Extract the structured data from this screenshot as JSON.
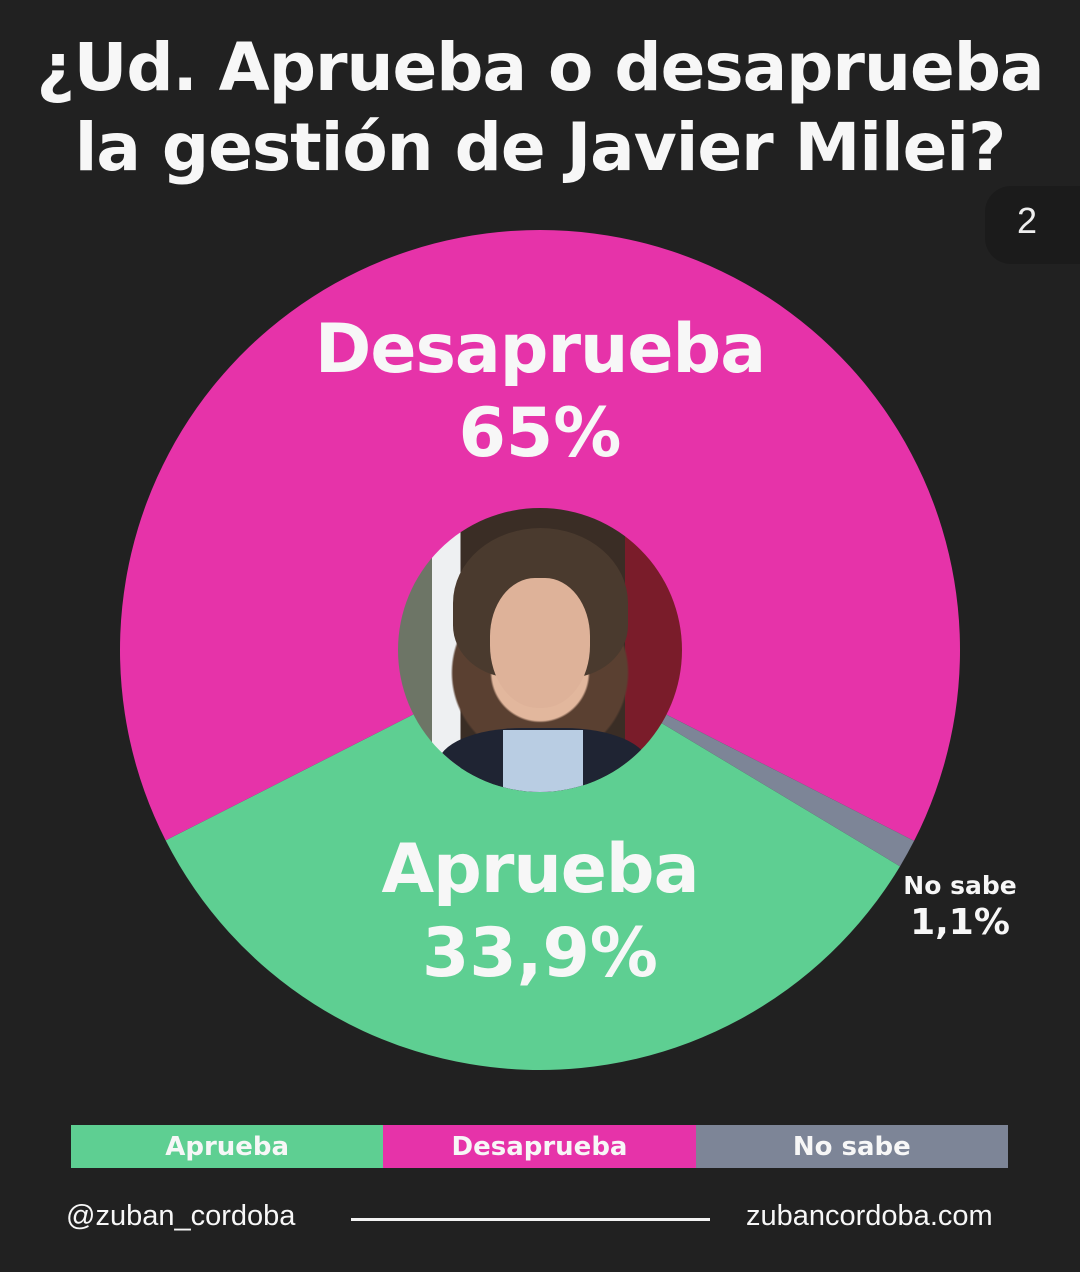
{
  "title": {
    "line1": "¿Ud. Aprueba o desaprueba",
    "line2": "la gestión de Javier Milei?"
  },
  "page_indicator": "2",
  "colors": {
    "background": "#212121",
    "aprueba": "#5ecf92",
    "desaprueba": "#e633a9",
    "no_sabe": "#7d8597",
    "text": "#f7f7f7"
  },
  "slices": [
    {
      "key": "aprueba",
      "name": "Aprueba",
      "pct_label": "33,9%",
      "value": 33.9
    },
    {
      "key": "no_sabe",
      "name": "No sabe",
      "pct_label": "1,1%",
      "value": 1.1
    },
    {
      "key": "desaprueba",
      "name": "Desaprueba",
      "pct_label": "65%",
      "value": 65
    }
  ],
  "legend": [
    {
      "label": "Aprueba",
      "color": "#5ecf92"
    },
    {
      "label": "Desaprueba",
      "color": "#e633a9"
    },
    {
      "label": "No sabe",
      "color": "#7d8597"
    }
  ],
  "center_image": "portrait-photo",
  "footer": {
    "handle": "@zuban_cordoba",
    "website": "zubancordoba.com"
  },
  "chart_data": {
    "type": "pie",
    "title": "¿Ud. Aprueba o desaprueba la gestión de Javier Milei?",
    "categories": [
      "Aprueba",
      "No sabe",
      "Desaprueba"
    ],
    "values": [
      33.9,
      1.1,
      65
    ],
    "labels": [
      "33,9%",
      "1,1%",
      "65%"
    ],
    "colors": [
      "#5ecf92",
      "#7d8597",
      "#e633a9"
    ],
    "legend": [
      "Aprueba",
      "Desaprueba",
      "No sabe"
    ],
    "legend_position": "bottom",
    "center_hole": "photo"
  }
}
